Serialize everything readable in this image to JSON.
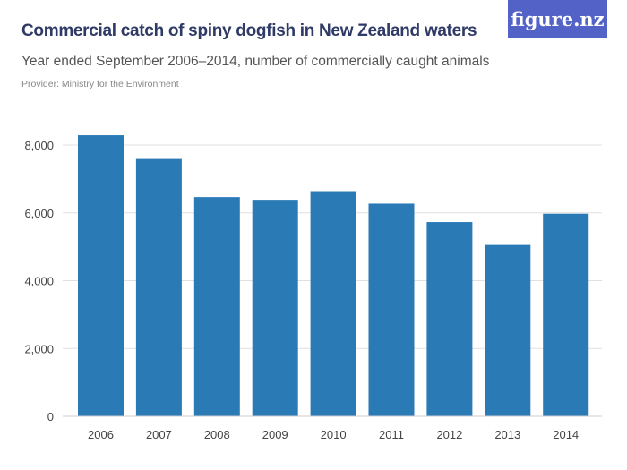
{
  "brand": "figure.nz",
  "chart_data": {
    "type": "bar",
    "title": "Commercial catch of spiny dogfish in New Zealand waters",
    "subtitle": "Year ended September 2006–2014, number of commercially caught animals",
    "provider": "Provider: Ministry for the Environment",
    "categories": [
      "2006",
      "2007",
      "2008",
      "2009",
      "2010",
      "2011",
      "2012",
      "2013",
      "2014"
    ],
    "values": [
      8289,
      7588,
      6465,
      6386,
      6640,
      6272,
      5728,
      5053,
      5974
    ],
    "ylim": [
      0,
      8000
    ],
    "yticks": [
      0,
      2000,
      4000,
      6000,
      8000
    ],
    "ytick_labels": [
      "0",
      "2,000",
      "4,000",
      "6,000",
      "8,000"
    ],
    "xlabel": "",
    "ylabel": "",
    "grid": true,
    "bar_color": "#2a7ab6",
    "grid_color": "#e0e0e0"
  }
}
